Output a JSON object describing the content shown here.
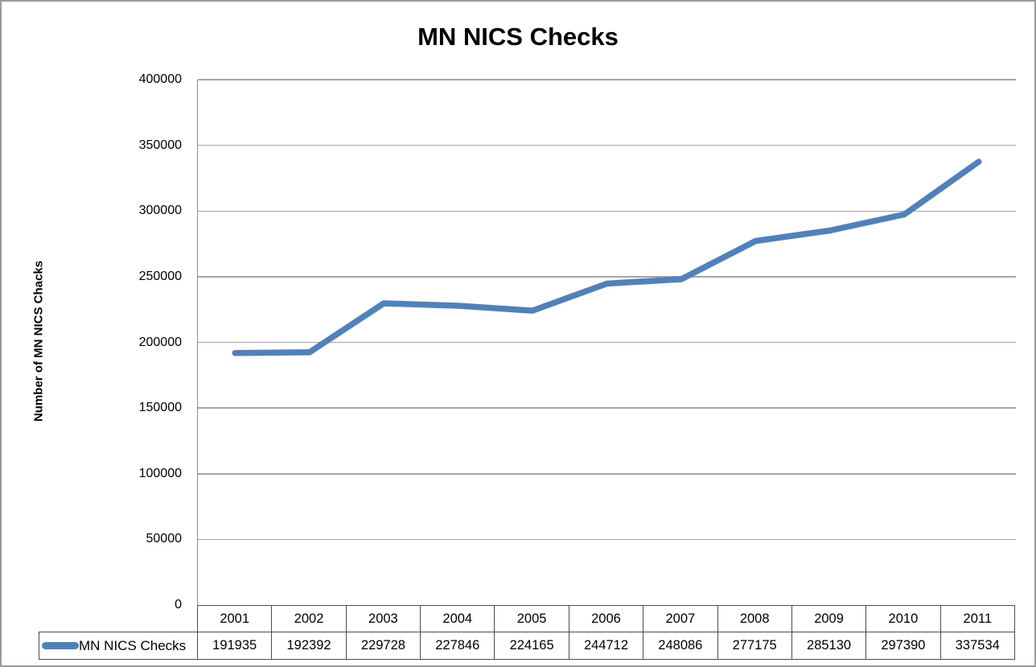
{
  "chart_data": {
    "type": "line",
    "title": "MN NICS Checks",
    "ylabel": "Number of MN NICS Chacks",
    "xlabel": "",
    "categories": [
      "2001",
      "2002",
      "2003",
      "2004",
      "2005",
      "2006",
      "2007",
      "2008",
      "2009",
      "2010",
      "2011"
    ],
    "series": [
      {
        "name": "MN NICS Checks",
        "values": [
          191935,
          192392,
          229728,
          227846,
          224165,
          244712,
          248086,
          277175,
          285130,
          297390,
          337534
        ],
        "color": "#4F81BD"
      }
    ],
    "ylim": [
      0,
      400000
    ],
    "y_ticks": [
      0,
      50000,
      100000,
      150000,
      200000,
      250000,
      300000,
      350000,
      400000
    ],
    "grid": "horizontal",
    "legend_position": "table-left",
    "data_table_shown": true
  },
  "colors": {
    "line": "#4F81BD",
    "gridline": "#A6A6A6",
    "axis": "#8C8C8C",
    "table_border": "#4D4D4D",
    "page_border": "#9A9A9A",
    "text": "#000000",
    "background": "#FFFFFF"
  }
}
